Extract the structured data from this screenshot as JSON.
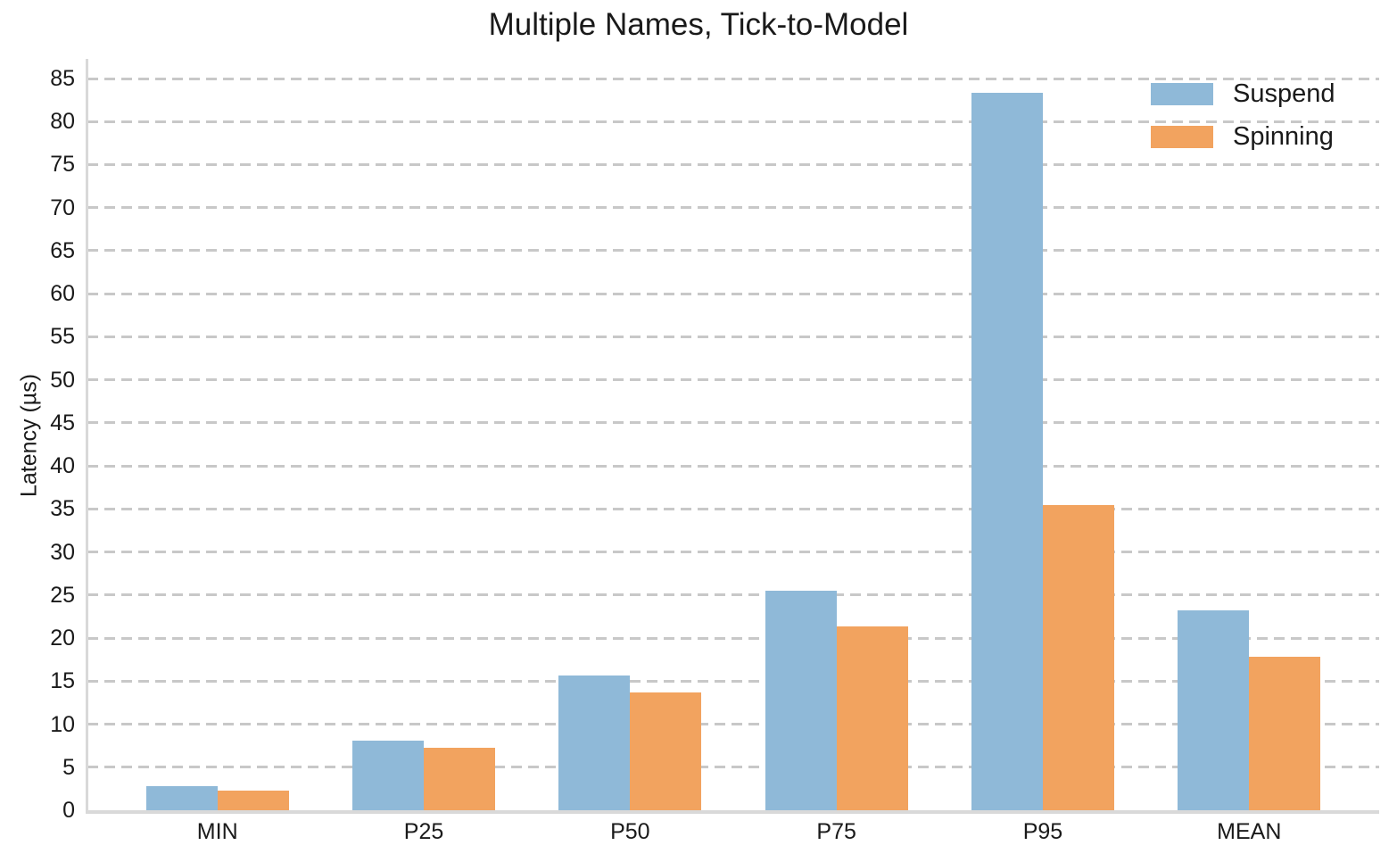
{
  "chart_data": {
    "type": "bar",
    "title": "Multiple Names, Tick-to-Model",
    "ylabel": "Latency (µs)",
    "xlabel": "",
    "categories": [
      "MIN",
      "P25",
      "P50",
      "P75",
      "P95",
      "MEAN"
    ],
    "series": [
      {
        "name": "Suspend",
        "color": "#8fb9d8",
        "values": [
          2.8,
          8.1,
          15.7,
          25.5,
          83.3,
          23.2
        ]
      },
      {
        "name": "Spinning",
        "color": "#f2a35f",
        "values": [
          2.3,
          7.3,
          13.7,
          21.4,
          35.4,
          17.8
        ]
      }
    ],
    "ylim": [
      0,
      87
    ],
    "yticks": [
      0,
      5,
      10,
      15,
      20,
      25,
      30,
      35,
      40,
      45,
      50,
      55,
      60,
      65,
      70,
      75,
      80,
      85
    ],
    "grid": "horizontal-dashed",
    "legend_position": "upper-right"
  },
  "colors": {
    "grid": "#c8c8c8",
    "axis": "#d9d9d9",
    "text": "#1a1a1a",
    "background": "#ffffff"
  }
}
